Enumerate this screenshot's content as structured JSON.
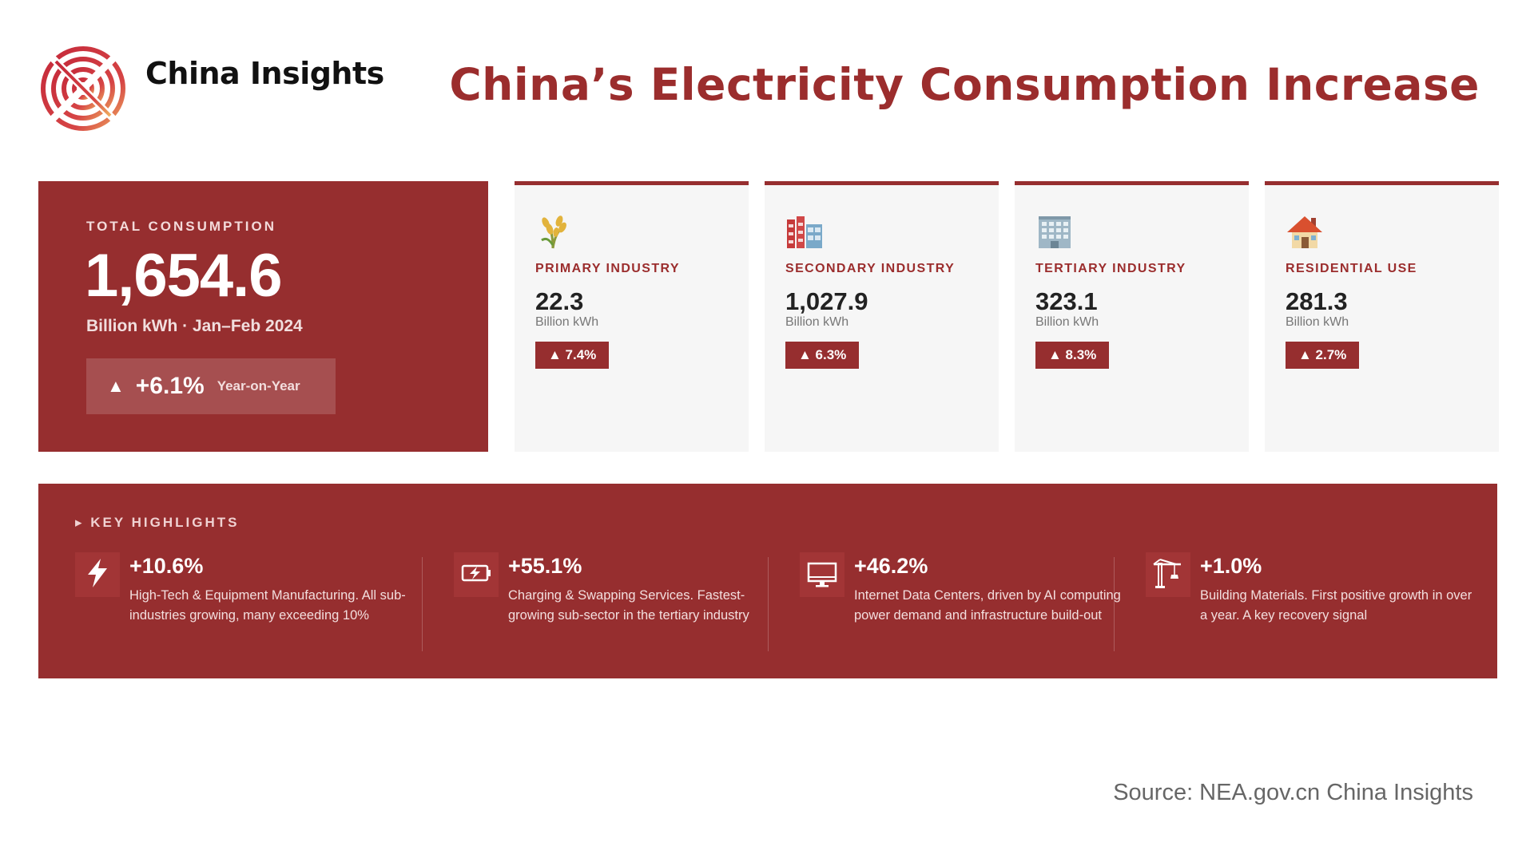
{
  "header": {
    "brand": "China Insights",
    "title": "China’s Electricity Consumption Increase",
    "logo_icon": "concentric-circle-logo-icon"
  },
  "total": {
    "label": "TOTAL CONSUMPTION",
    "value": "1,654.6",
    "unit": "Billion kWh · Jan–Feb 2024",
    "change": "+6.1%",
    "change_label": "Year-on-Year",
    "arrow": "▲"
  },
  "sectors": [
    {
      "icon": "wheat-icon",
      "label": "PRIMARY INDUSTRY",
      "value": "22.3",
      "unit": "Billion kWh",
      "change": "▲ 7.4%"
    },
    {
      "icon": "factory-icon",
      "label": "SECONDARY INDUSTRY",
      "value": "1,027.9",
      "unit": "Billion kWh",
      "change": "▲ 6.3%"
    },
    {
      "icon": "office-building-icon",
      "label": "TERTIARY INDUSTRY",
      "value": "323.1",
      "unit": "Billion kWh",
      "change": "▲ 8.3%"
    },
    {
      "icon": "house-icon",
      "label": "RESIDENTIAL USE",
      "value": "281.3",
      "unit": "Billion kWh",
      "change": "▲ 2.7%"
    }
  ],
  "highlights": {
    "heading": "▸ KEY HIGHLIGHTS",
    "items": [
      {
        "icon": "lightning-bolt-icon",
        "pct": "+10.6%",
        "desc": "High-Tech & Equipment Manufacturing. All sub-industries growing, many exceeding 10%"
      },
      {
        "icon": "charging-battery-icon",
        "pct": "+55.1%",
        "desc": "Charging & Swapping Services. Fastest-growing sub-sector in the tertiary industry"
      },
      {
        "icon": "computer-monitor-icon",
        "pct": "+46.2%",
        "desc": "Internet Data Centers, driven by AI computing power demand and infrastructure build-out"
      },
      {
        "icon": "construction-crane-icon",
        "pct": "+1.0%",
        "desc": "Building Materials. First positive growth in over a year. A key recovery signal"
      }
    ]
  },
  "source": "Source: NEA.gov.cn China Insights",
  "colors": {
    "accent": "#962e2f",
    "title": "#9b2d2d",
    "card_bg": "#f6f6f6"
  }
}
